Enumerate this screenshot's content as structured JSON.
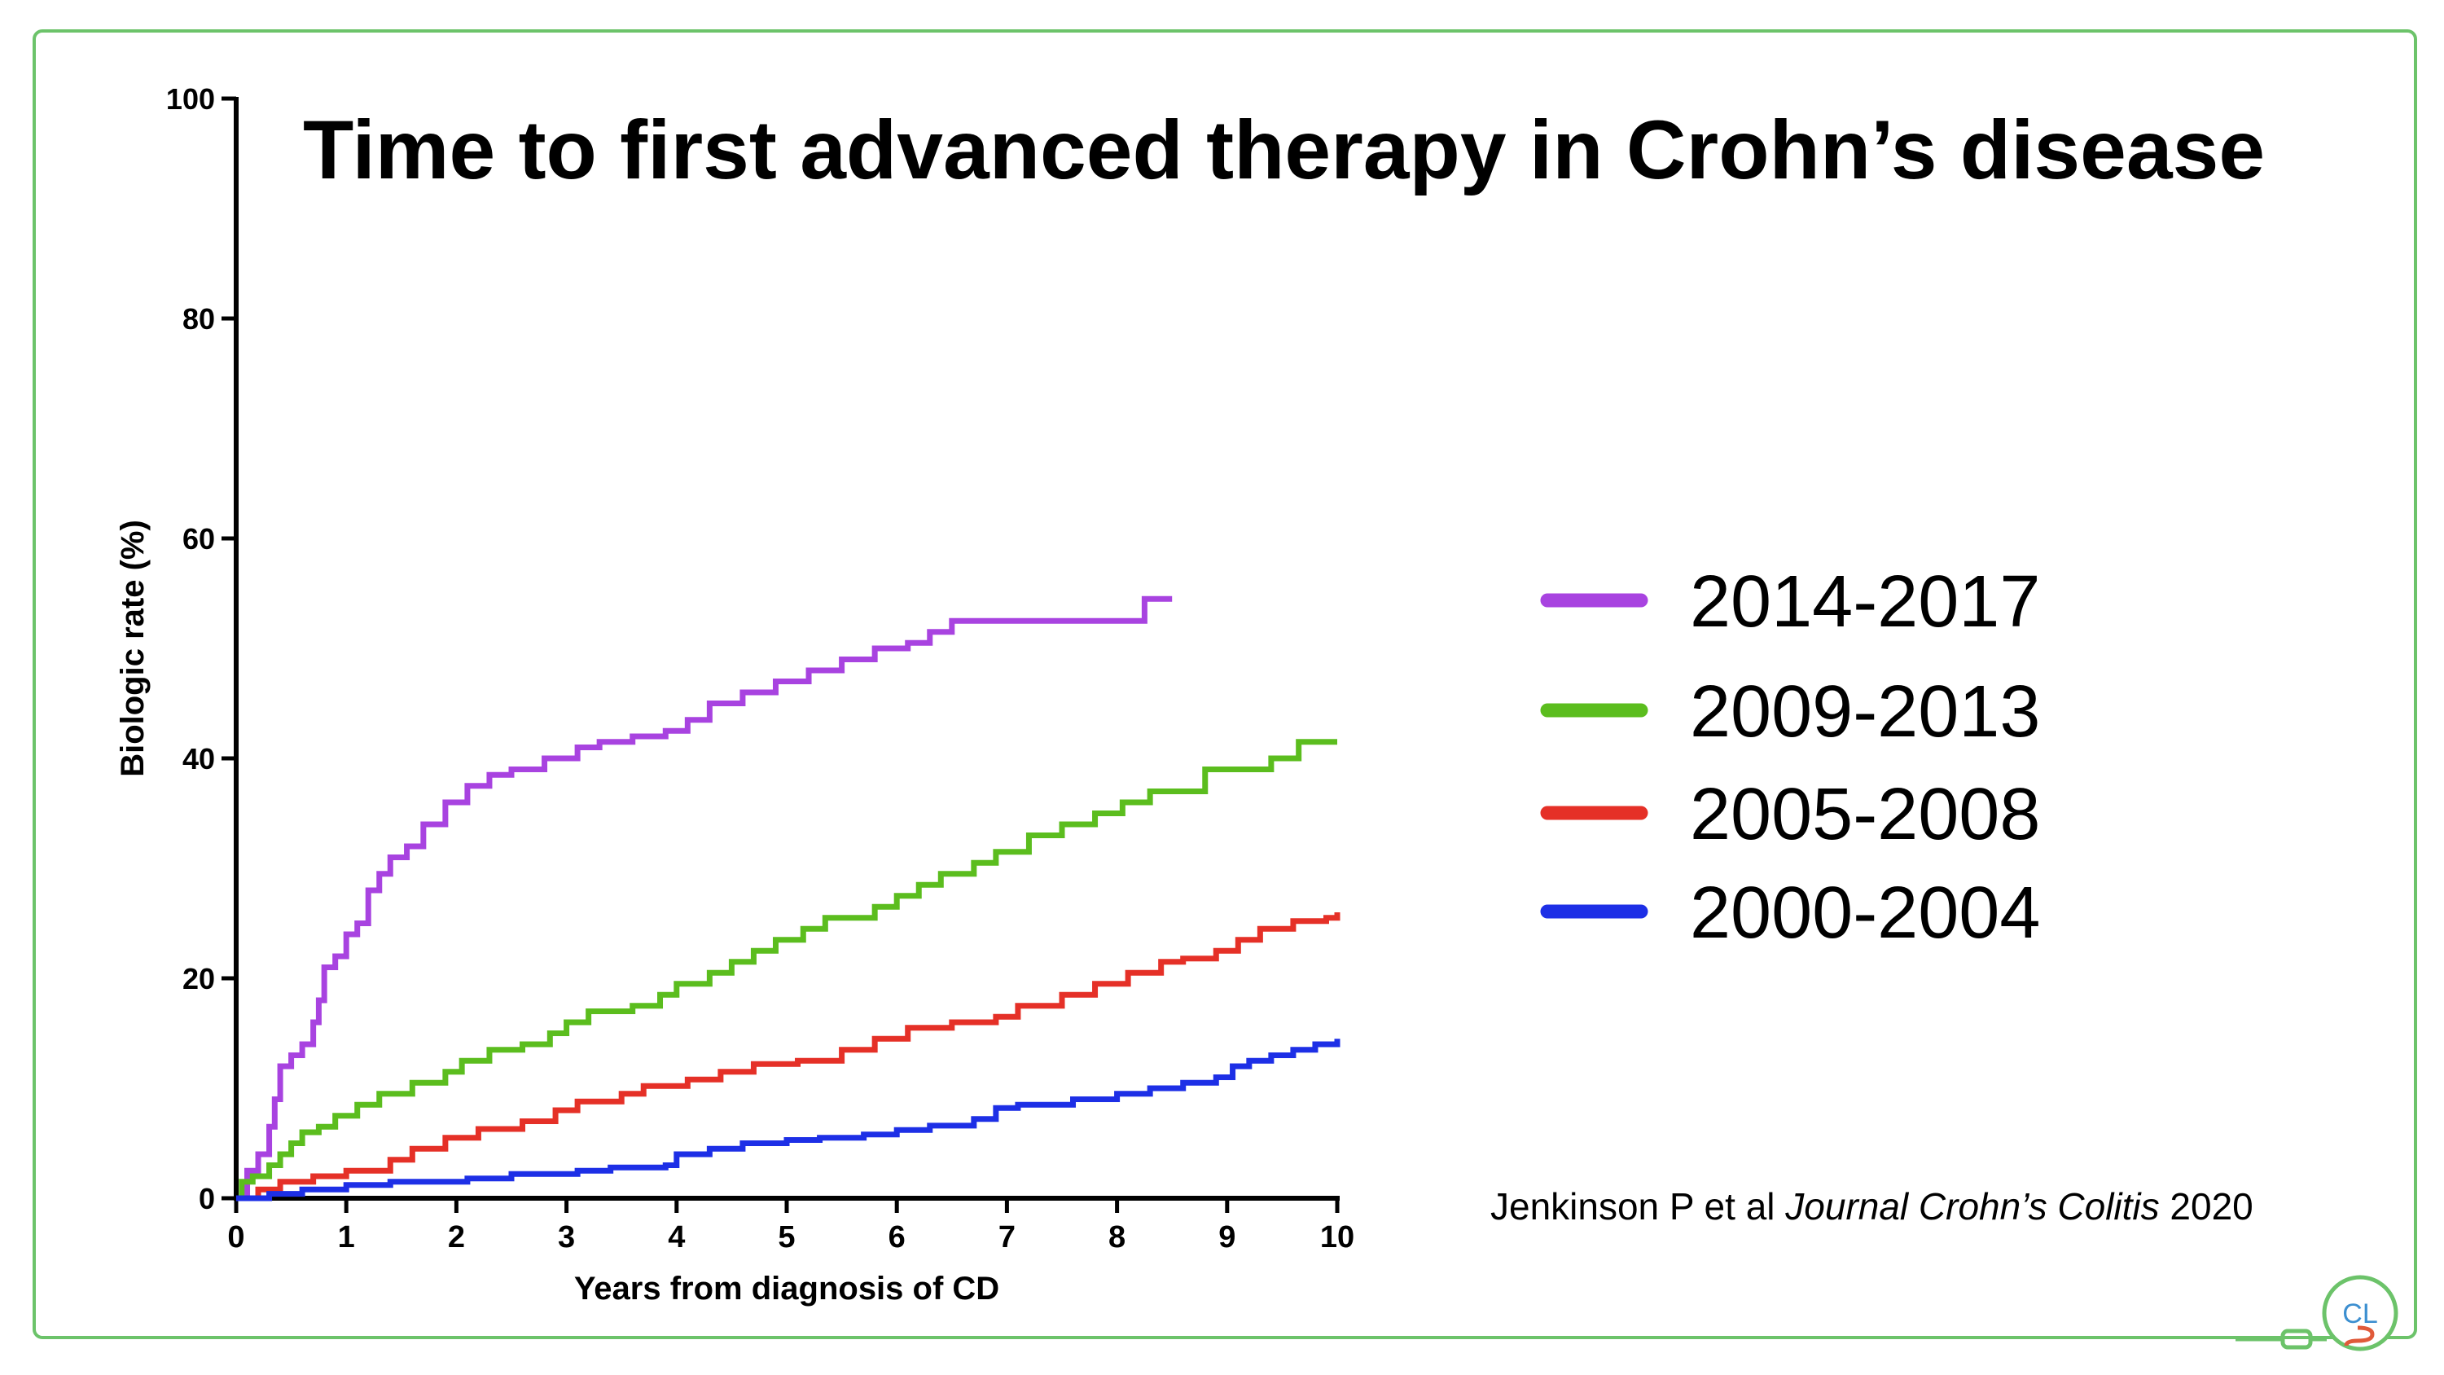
{
  "slide": {
    "title": "Time to first advanced therapy in Crohn’s disease",
    "citation": {
      "authors": "Jenkinson P et al",
      "journal": "Journal Crohn’s Colitis",
      "year": "2020"
    },
    "logo": {
      "text": "CL",
      "icon": "stethoscope-logo-icon"
    },
    "frame_color": "#6cc36a"
  },
  "chart_data": {
    "type": "line",
    "step": true,
    "xlabel": "Years from diagnosis of CD",
    "ylabel": "Biologic rate (%)",
    "xlim": [
      0,
      10
    ],
    "ylim": [
      0,
      100
    ],
    "x_ticks": [
      "0",
      "1",
      "2",
      "3",
      "4",
      "5",
      "6",
      "7",
      "8",
      "9",
      "10"
    ],
    "y_ticks": [
      "0",
      "20",
      "40",
      "60",
      "80",
      "100"
    ],
    "grid": false,
    "legend_position": "right",
    "series": [
      {
        "name": "2014-2017",
        "color": "#a843e0",
        "points": [
          [
            0,
            0
          ],
          [
            0.1,
            2.5
          ],
          [
            0.2,
            4
          ],
          [
            0.3,
            6.5
          ],
          [
            0.35,
            9
          ],
          [
            0.4,
            12
          ],
          [
            0.5,
            13
          ],
          [
            0.6,
            14
          ],
          [
            0.7,
            16
          ],
          [
            0.75,
            18
          ],
          [
            0.8,
            21
          ],
          [
            0.9,
            22
          ],
          [
            1.0,
            24
          ],
          [
            1.1,
            25
          ],
          [
            1.2,
            28
          ],
          [
            1.3,
            29.5
          ],
          [
            1.4,
            31
          ],
          [
            1.55,
            32
          ],
          [
            1.7,
            34
          ],
          [
            1.9,
            36
          ],
          [
            2.1,
            37.5
          ],
          [
            2.3,
            38.5
          ],
          [
            2.5,
            39
          ],
          [
            2.8,
            40
          ],
          [
            3.1,
            41
          ],
          [
            3.3,
            41.5
          ],
          [
            3.6,
            42
          ],
          [
            3.9,
            42.5
          ],
          [
            4.1,
            43.5
          ],
          [
            4.3,
            45
          ],
          [
            4.6,
            46
          ],
          [
            4.9,
            47
          ],
          [
            5.2,
            48
          ],
          [
            5.5,
            49
          ],
          [
            5.8,
            50
          ],
          [
            6.1,
            50.5
          ],
          [
            6.3,
            51.5
          ],
          [
            6.5,
            52.5
          ],
          [
            8.25,
            52.5
          ],
          [
            8.25,
            54.5
          ],
          [
            8.5,
            54.5
          ]
        ]
      },
      {
        "name": "2009-2013",
        "color": "#5bbd1e",
        "points": [
          [
            0,
            0
          ],
          [
            0.05,
            1.5
          ],
          [
            0.15,
            2
          ],
          [
            0.3,
            3
          ],
          [
            0.4,
            4
          ],
          [
            0.5,
            5
          ],
          [
            0.6,
            6
          ],
          [
            0.75,
            6.5
          ],
          [
            0.9,
            7.5
          ],
          [
            1.1,
            8.5
          ],
          [
            1.3,
            9.5
          ],
          [
            1.6,
            10.5
          ],
          [
            1.9,
            11.5
          ],
          [
            2.05,
            12.5
          ],
          [
            2.3,
            13.5
          ],
          [
            2.6,
            14
          ],
          [
            2.85,
            15
          ],
          [
            3.0,
            16
          ],
          [
            3.2,
            17
          ],
          [
            3.6,
            17.5
          ],
          [
            3.85,
            18.5
          ],
          [
            4.0,
            19.5
          ],
          [
            4.3,
            20.5
          ],
          [
            4.5,
            21.5
          ],
          [
            4.7,
            22.5
          ],
          [
            4.9,
            23.5
          ],
          [
            5.15,
            24.5
          ],
          [
            5.35,
            25.5
          ],
          [
            5.8,
            26.5
          ],
          [
            6.0,
            27.5
          ],
          [
            6.2,
            28.5
          ],
          [
            6.4,
            29.5
          ],
          [
            6.7,
            30.5
          ],
          [
            6.9,
            31.5
          ],
          [
            7.2,
            33
          ],
          [
            7.5,
            34
          ],
          [
            7.8,
            35
          ],
          [
            8.05,
            36
          ],
          [
            8.3,
            37
          ],
          [
            8.8,
            37
          ],
          [
            8.8,
            39
          ],
          [
            9.4,
            39
          ],
          [
            9.4,
            40
          ],
          [
            9.65,
            40
          ],
          [
            9.65,
            41.5
          ],
          [
            10,
            41.5
          ]
        ]
      },
      {
        "name": "2005-2008",
        "color": "#e53027",
        "points": [
          [
            0,
            0
          ],
          [
            0.2,
            0.8
          ],
          [
            0.4,
            1.5
          ],
          [
            0.7,
            2
          ],
          [
            1.0,
            2.5
          ],
          [
            1.4,
            3.5
          ],
          [
            1.6,
            4.5
          ],
          [
            1.9,
            5.5
          ],
          [
            2.2,
            6.3
          ],
          [
            2.6,
            7
          ],
          [
            2.9,
            8
          ],
          [
            3.1,
            8.8
          ],
          [
            3.5,
            9.5
          ],
          [
            3.7,
            10.2
          ],
          [
            4.1,
            10.8
          ],
          [
            4.4,
            11.5
          ],
          [
            4.7,
            12.2
          ],
          [
            5.1,
            12.5
          ],
          [
            5.5,
            13.5
          ],
          [
            5.8,
            14.5
          ],
          [
            6.1,
            15.5
          ],
          [
            6.5,
            16
          ],
          [
            6.9,
            16.5
          ],
          [
            7.1,
            17.5
          ],
          [
            7.5,
            18.5
          ],
          [
            7.8,
            19.5
          ],
          [
            8.1,
            20.5
          ],
          [
            8.4,
            21.5
          ],
          [
            8.6,
            21.8
          ],
          [
            8.9,
            22.5
          ],
          [
            9.1,
            23.5
          ],
          [
            9.3,
            24.5
          ],
          [
            9.6,
            25.2
          ],
          [
            9.9,
            25.5
          ],
          [
            10,
            26
          ]
        ]
      },
      {
        "name": "2000-2004",
        "color": "#1d2fe6",
        "points": [
          [
            0,
            0
          ],
          [
            0.3,
            0.4
          ],
          [
            0.6,
            0.8
          ],
          [
            1.0,
            1.2
          ],
          [
            1.4,
            1.5
          ],
          [
            2.1,
            1.8
          ],
          [
            2.5,
            2.2
          ],
          [
            3.1,
            2.5
          ],
          [
            3.4,
            2.8
          ],
          [
            3.9,
            3
          ],
          [
            4.0,
            4
          ],
          [
            4.3,
            4.5
          ],
          [
            4.6,
            5
          ],
          [
            5.0,
            5.3
          ],
          [
            5.3,
            5.5
          ],
          [
            5.7,
            5.8
          ],
          [
            6.0,
            6.2
          ],
          [
            6.3,
            6.6
          ],
          [
            6.7,
            7.2
          ],
          [
            6.9,
            8.2
          ],
          [
            7.1,
            8.5
          ],
          [
            7.6,
            9
          ],
          [
            8.0,
            9.5
          ],
          [
            8.3,
            10
          ],
          [
            8.6,
            10.5
          ],
          [
            8.9,
            11
          ],
          [
            9.05,
            12
          ],
          [
            9.2,
            12.5
          ],
          [
            9.4,
            13
          ],
          [
            9.6,
            13.5
          ],
          [
            9.8,
            14
          ],
          [
            10,
            14.5
          ]
        ]
      }
    ]
  }
}
